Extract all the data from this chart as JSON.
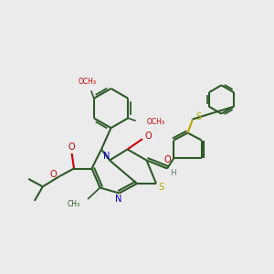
{
  "background_color": "#ebebeb",
  "bond_color": "#2d5a27",
  "n_color": "#0000cc",
  "o_color": "#cc0000",
  "s_color": "#b8a800",
  "h_color": "#5a8a70",
  "line_width": 1.5,
  "figsize": [
    3.0,
    3.0
  ],
  "dpi": 100,
  "xlim": [
    0,
    10
  ],
  "ylim": [
    0,
    10
  ]
}
